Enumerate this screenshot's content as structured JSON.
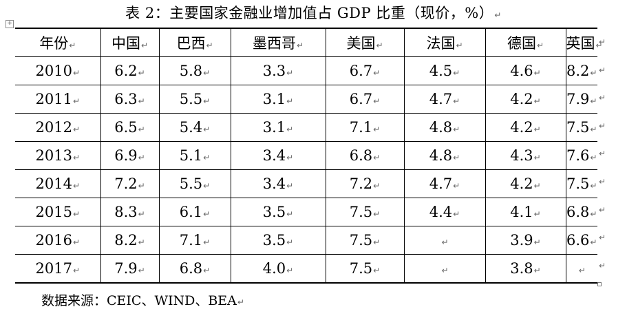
{
  "title": "表 2：主要国家金融业增加值占 GDP 比重（现价，%）",
  "anchor_symbol": "+",
  "mark": "↵",
  "row_mark": "↵",
  "header": [
    "年份",
    "中国",
    "巴西",
    "墨西哥",
    "美国",
    "法国",
    "德国",
    "英国"
  ],
  "rows": [
    [
      "2010",
      "6.2",
      "5.8",
      "3.3",
      "6.7",
      "4.5",
      "4.6",
      "8.2"
    ],
    [
      "2011",
      "6.3",
      "5.5",
      "3.1",
      "6.7",
      "4.7",
      "4.2",
      "7.9"
    ],
    [
      "2012",
      "6.5",
      "5.4",
      "3.1",
      "7.1",
      "4.8",
      "4.2",
      "7.5"
    ],
    [
      "2013",
      "6.9",
      "5.1",
      "3.4",
      "6.8",
      "4.8",
      "4.3",
      "7.6"
    ],
    [
      "2014",
      "7.2",
      "5.5",
      "3.4",
      "7.2",
      "4.7",
      "4.2",
      "7.5"
    ],
    [
      "2015",
      "8.3",
      "6.1",
      "3.5",
      "7.5",
      "4.4",
      "4.1",
      "6.8"
    ],
    [
      "2016",
      "8.2",
      "7.1",
      "3.5",
      "7.5",
      "",
      "3.9",
      "6.6"
    ],
    [
      "2017",
      "7.9",
      "6.8",
      "4.0",
      "7.5",
      "",
      "3.8",
      ""
    ]
  ],
  "source": "数据来源：CEIC、WIND、BEA"
}
